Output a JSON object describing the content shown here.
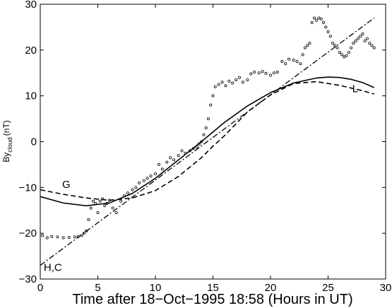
{
  "chart_data": {
    "type": "line",
    "xlabel": "Time after 18−Oct−1995 18:58 (Hours in UT)",
    "ylabel_main": "By",
    "ylabel_sub": "cloud",
    "ylabel_unit": "(nT)",
    "xlim": [
      0,
      30
    ],
    "ylim": [
      -30,
      30
    ],
    "xticks": [
      0,
      5,
      10,
      15,
      20,
      25,
      30
    ],
    "yticks": [
      -30,
      -20,
      -10,
      0,
      10,
      20,
      30
    ],
    "xtick_labels": [
      "0",
      "5",
      "10",
      "15",
      "20",
      "25",
      "30"
    ],
    "ytick_labels": [
      "−30",
      "−20",
      "−10",
      "0",
      "10",
      "20",
      "30"
    ],
    "grid": false,
    "annotations": [
      {
        "text": "G",
        "x": 1.9,
        "y": -10.1
      },
      {
        "text": "H,C",
        "x": 0.3,
        "y": -28.2
      },
      {
        "text": "L",
        "x": 27.1,
        "y": 10.8
      }
    ],
    "series": [
      {
        "style": "solid",
        "x": [
          0,
          2,
          4,
          6,
          8,
          10,
          12,
          14,
          16,
          18,
          20,
          22,
          24,
          25,
          26,
          27,
          28,
          29
        ],
        "y": [
          -12,
          -13.4,
          -14,
          -13.4,
          -11.3,
          -8,
          -4,
          0,
          4.2,
          7.8,
          10.7,
          12.8,
          13.9,
          14.1,
          14,
          13.6,
          12.9,
          11.8
        ]
      },
      {
        "style": "dashed",
        "x": [
          0,
          2,
          4,
          6,
          8,
          10,
          12,
          14,
          15,
          16,
          18,
          20,
          22,
          24,
          26,
          28,
          29
        ],
        "y": [
          -10.5,
          -11.5,
          -12.3,
          -12.8,
          -12.3,
          -10.7,
          -7.6,
          -3.5,
          -1,
          1.3,
          6.5,
          10.2,
          12.7,
          13.1,
          12.3,
          11.1,
          10.4
        ]
      },
      {
        "style": "dashdot",
        "x": [
          0,
          29
        ],
        "y": [
          -27,
          27
        ]
      },
      {
        "style": "points",
        "x": [
          0.2,
          0.6,
          1.0,
          1.5,
          2.0,
          2.5,
          3.0,
          3.3,
          3.6,
          3.8,
          4.0,
          4.2,
          4.4,
          4.6,
          4.8,
          5.0,
          5.2,
          5.4,
          5.6,
          5.8,
          6.0,
          6.3,
          6.6,
          7.0,
          7.3,
          7.6,
          8.0,
          8.3,
          8.6,
          9.0,
          9.3,
          9.6,
          10.0,
          10.3,
          10.6,
          11.0,
          11.3,
          11.6,
          12.0,
          12.3,
          12.6,
          13.0,
          13.3,
          13.6,
          13.8,
          14.0,
          14.2,
          14.4,
          14.6,
          14.8,
          15.0,
          15.2,
          15.5,
          15.8,
          16.1,
          16.4,
          16.7,
          17.0,
          17.3,
          17.6,
          18.0,
          18.3,
          18.6,
          19.0,
          19.3,
          19.6,
          20.0,
          20.3,
          20.6,
          21.0,
          21.3,
          21.6,
          22.0,
          22.3,
          22.6,
          22.8,
          23.0,
          23.2,
          23.4,
          23.6,
          23.8,
          24.0,
          24.2,
          24.4,
          24.6,
          24.8,
          25.0,
          25.2,
          25.4,
          25.6,
          25.8,
          26.0,
          26.2,
          26.4,
          26.6,
          26.8,
          27.0,
          27.2,
          27.4,
          27.6,
          27.8,
          28.0,
          28.2,
          28.4,
          28.6,
          28.8,
          29.0
        ],
        "y": [
          -20.5,
          -21,
          -20.7,
          -20.8,
          -21,
          -20.9,
          -20.8,
          -20.7,
          -20.5,
          -20,
          -19.5,
          -17,
          -14.5,
          -13,
          -13.5,
          -15.5,
          -13,
          -12.5,
          -14,
          -13.5,
          -12.8,
          -14.5,
          -15.5,
          -13,
          -11.8,
          -11.2,
          -10.5,
          -10,
          -9,
          -8.5,
          -8,
          -7.5,
          -7,
          -5,
          -6,
          -4.5,
          -3.5,
          -4,
          -3,
          -2,
          -2.5,
          -2,
          -1.5,
          -1.2,
          -0.5,
          0,
          1.5,
          3,
          5,
          8,
          10,
          12,
          12.5,
          13,
          12.2,
          13.2,
          12.8,
          13.5,
          14,
          13,
          13.5,
          14.8,
          15.2,
          15,
          15.3,
          14.9,
          14.5,
          15,
          15.2,
          17.5,
          17,
          18,
          17.8,
          17.5,
          17,
          19,
          20.5,
          21,
          21.5,
          26,
          27,
          26.5,
          27,
          26.8,
          26,
          25,
          24,
          23,
          21.5,
          21,
          20.5,
          19.5,
          19,
          18.5,
          18.8,
          19.5,
          20.5,
          21.5,
          22,
          22.5,
          23,
          23.5,
          22,
          22.5,
          21.5,
          21,
          20.5
        ]
      }
    ]
  }
}
